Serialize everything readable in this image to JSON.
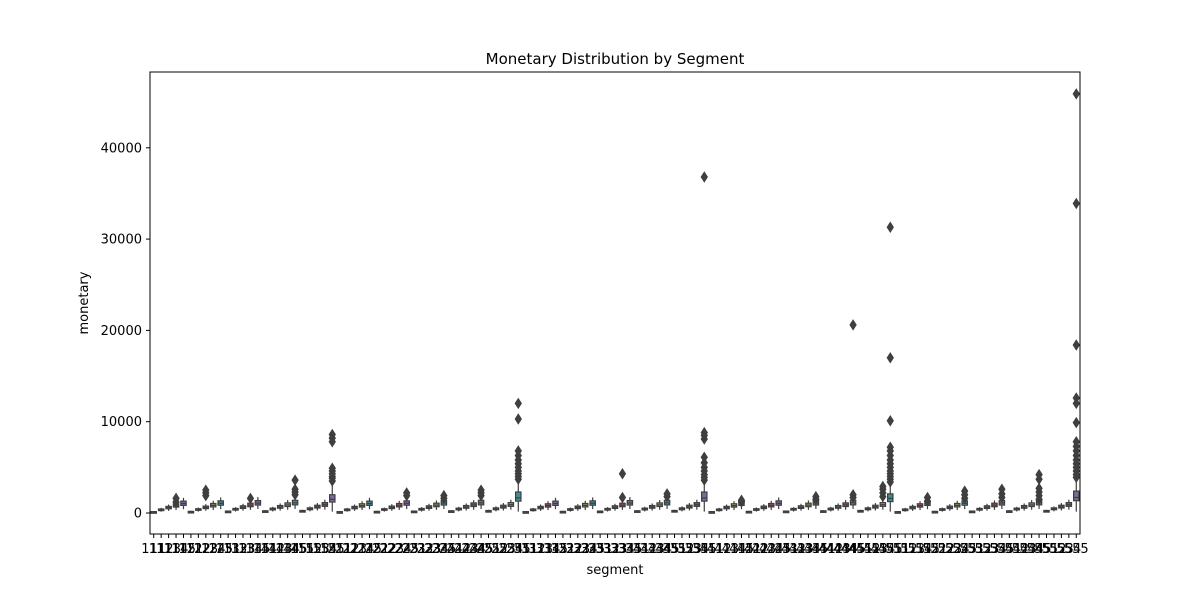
{
  "chart_data": {
    "type": "box",
    "title": "Monetary Distribution by Segment",
    "xlabel": "segment",
    "ylabel": "monetary",
    "ylim": [
      -2300,
      48300
    ],
    "yticks": [
      0,
      10000,
      20000,
      30000,
      40000
    ],
    "ytick_labels": [
      "0",
      "10000",
      "20000",
      "30000",
      "40000"
    ],
    "categories": [
      "111",
      "112",
      "113",
      "114",
      "115",
      "121",
      "122",
      "123",
      "124",
      "125",
      "131",
      "132",
      "133",
      "134",
      "135",
      "141",
      "142",
      "143",
      "144",
      "145",
      "151",
      "152",
      "153",
      "154",
      "155",
      "211",
      "212",
      "213",
      "214",
      "215",
      "221",
      "222",
      "223",
      "224",
      "225",
      "231",
      "232",
      "233",
      "234",
      "235",
      "241",
      "242",
      "243",
      "244",
      "245",
      "251",
      "252",
      "253",
      "254",
      "255",
      "311",
      "312",
      "313",
      "314",
      "315",
      "321",
      "322",
      "323",
      "324",
      "325",
      "331",
      "332",
      "333",
      "334",
      "335",
      "341",
      "342",
      "343",
      "344",
      "345",
      "351",
      "352",
      "353",
      "354",
      "355",
      "411",
      "412",
      "413",
      "414",
      "415",
      "421",
      "422",
      "423",
      "424",
      "425",
      "431",
      "432",
      "433",
      "434",
      "435",
      "441",
      "442",
      "443",
      "444",
      "445",
      "451",
      "452",
      "453",
      "454",
      "455",
      "511",
      "512",
      "513",
      "514",
      "515",
      "521",
      "522",
      "523",
      "524",
      "525",
      "531",
      "532",
      "533",
      "534",
      "535",
      "541",
      "542",
      "543",
      "544",
      "545",
      "551",
      "552",
      "553",
      "554",
      "555"
    ],
    "box_fill_colors": [
      "#3f6e9a",
      "#b3774b",
      "#4e8a4e",
      "#a44c4f",
      "#7d6a9a",
      "#836552",
      "#b4709b",
      "#6e6e6e",
      "#9a9a4a",
      "#3f8d9a"
    ],
    "line_color": "#3f3f3f",
    "highlighted_boxes": [
      {
        "category": "155",
        "q1": 1200,
        "median": 1500,
        "q3": 2000,
        "whisker_low": 150,
        "whisker_high": 3200,
        "outliers": [
          3500,
          3800,
          4000,
          4300,
          4600,
          4900,
          7800,
          8200,
          8600
        ]
      },
      {
        "category": "255",
        "q1": 1300,
        "median": 1650,
        "q3": 2300,
        "whisker_low": 150,
        "whisker_high": 3400,
        "outliers": [
          3700,
          4000,
          4300,
          4600,
          5000,
          5400,
          5800,
          6300,
          6800,
          10300,
          12000
        ]
      },
      {
        "category": "355",
        "q1": 1300,
        "median": 1650,
        "q3": 2300,
        "whisker_low": 150,
        "whisker_high": 3400,
        "outliers": [
          3600,
          3900,
          4200,
          4600,
          5000,
          5500,
          6100,
          8100,
          8500,
          8800,
          36800
        ]
      },
      {
        "category": "455",
        "q1": 1250,
        "median": 1600,
        "q3": 2100,
        "whisker_low": 150,
        "whisker_high": 3200,
        "outliers": [
          3400,
          3700,
          4000,
          4300,
          4600,
          5000,
          5400,
          5800,
          6300,
          6800,
          7200,
          10100,
          17000,
          31300
        ]
      },
      {
        "category": "555",
        "q1": 1350,
        "median": 1700,
        "q3": 2400,
        "whisker_low": 150,
        "whisker_high": 3600,
        "outliers": [
          3900,
          4200,
          4600,
          5000,
          5400,
          5800,
          6300,
          6800,
          7300,
          7800,
          9900,
          12000,
          12600,
          18400,
          33900,
          45900
        ]
      }
    ],
    "notable_outliers": [
      {
        "category": "114",
        "values": [
          1200,
          1600
        ]
      },
      {
        "category": "123",
        "values": [
          1900,
          2200,
          2500
        ]
      },
      {
        "category": "134",
        "values": [
          1600
        ]
      },
      {
        "category": "145",
        "values": [
          2000,
          2300,
          2600,
          3600
        ]
      },
      {
        "category": "225",
        "values": [
          1900,
          2200
        ]
      },
      {
        "category": "235",
        "values": [
          1600,
          1900
        ]
      },
      {
        "category": "245",
        "values": [
          1900,
          2200,
          2500
        ]
      },
      {
        "category": "334",
        "values": [
          1700,
          4300
        ]
      },
      {
        "category": "345",
        "values": [
          1800,
          2100
        ]
      },
      {
        "category": "415",
        "values": [
          1200,
          1400
        ]
      },
      {
        "category": "435",
        "values": [
          1500,
          1800
        ]
      },
      {
        "category": "445",
        "values": [
          1700,
          2000,
          20600
        ]
      },
      {
        "category": "454",
        "values": [
          1800,
          2200,
          2600,
          2900
        ]
      },
      {
        "category": "515",
        "values": [
          1300,
          1700
        ]
      },
      {
        "category": "525",
        "values": [
          1600,
          2000,
          2400
        ]
      },
      {
        "category": "535",
        "values": [
          1700,
          2100,
          2600
        ]
      },
      {
        "category": "545",
        "values": [
          1500,
          1900,
          2300,
          2700,
          3700,
          4200
        ]
      }
    ]
  }
}
